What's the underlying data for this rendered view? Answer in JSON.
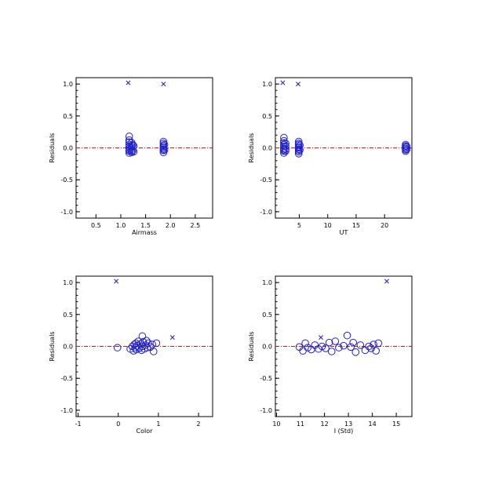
{
  "colors": {
    "marker": "#2020c8",
    "zero_line": "#e01010",
    "axis": "#000000"
  },
  "chart_data": [
    {
      "type": "scatter",
      "xlabel": "Airmass",
      "ylabel": "Residuals",
      "xlim": [
        0.1,
        2.85
      ],
      "ylim": [
        -1.1,
        1.1
      ],
      "xticks": [
        0.5,
        1.0,
        1.5,
        2.0,
        2.5
      ],
      "xtick_labels": [
        "0.5",
        "1.0",
        "1.5",
        "2.0",
        "2.5"
      ],
      "yticks": [
        -1.0,
        -0.5,
        0.0,
        0.5,
        1.0
      ],
      "ytick_labels": [
        "-1.0",
        "-0.5",
        "0.0",
        "0.5",
        "1.0"
      ],
      "zero_line": 0,
      "circles": [
        [
          1.17,
          0.18
        ],
        [
          1.17,
          0.12
        ],
        [
          1.17,
          0.09
        ],
        [
          1.17,
          0.05
        ],
        [
          1.17,
          0.02
        ],
        [
          1.17,
          -0.01
        ],
        [
          1.17,
          -0.03
        ],
        [
          1.17,
          -0.05
        ],
        [
          1.17,
          -0.08
        ],
        [
          1.22,
          0.08
        ],
        [
          1.22,
          0.04
        ],
        [
          1.22,
          0.01
        ],
        [
          1.22,
          -0.02
        ],
        [
          1.22,
          -0.05
        ],
        [
          1.22,
          -0.07
        ],
        [
          1.24,
          0.05
        ],
        [
          1.24,
          -0.04
        ],
        [
          1.26,
          0.03
        ],
        [
          1.26,
          -0.06
        ],
        [
          1.86,
          0.1
        ],
        [
          1.86,
          0.07
        ],
        [
          1.86,
          0.04
        ],
        [
          1.86,
          0.02
        ],
        [
          1.86,
          0.0
        ],
        [
          1.86,
          -0.02
        ],
        [
          1.86,
          -0.04
        ],
        [
          1.86,
          -0.07
        ],
        [
          1.88,
          0.05
        ],
        [
          1.88,
          -0.03
        ]
      ],
      "crosses": [
        [
          1.15,
          1.02
        ],
        [
          1.86,
          1.0
        ]
      ]
    },
    {
      "type": "scatter",
      "xlabel": "UT",
      "ylabel": "Residuals",
      "xlim": [
        0.8,
        24.8
      ],
      "ylim": [
        -1.1,
        1.1
      ],
      "xticks": [
        5,
        10,
        15,
        20
      ],
      "xtick_labels": [
        "5",
        "10",
        "15",
        "20"
      ],
      "yticks": [
        -1.0,
        -0.5,
        0.0,
        0.5,
        1.0
      ],
      "ytick_labels": [
        "-1.0",
        "-0.5",
        "0.0",
        "0.5",
        "1.0"
      ],
      "zero_line": 0,
      "circles": [
        [
          2.3,
          0.16
        ],
        [
          2.3,
          0.11
        ],
        [
          2.3,
          0.08
        ],
        [
          2.3,
          0.05
        ],
        [
          2.3,
          0.02
        ],
        [
          2.3,
          -0.01
        ],
        [
          2.3,
          -0.03
        ],
        [
          2.3,
          -0.05
        ],
        [
          2.3,
          -0.08
        ],
        [
          2.6,
          0.07
        ],
        [
          2.6,
          0.03
        ],
        [
          2.6,
          -0.02
        ],
        [
          2.6,
          -0.05
        ],
        [
          4.9,
          0.1
        ],
        [
          4.9,
          0.07
        ],
        [
          4.9,
          0.05
        ],
        [
          4.9,
          0.02
        ],
        [
          4.9,
          0.0
        ],
        [
          4.9,
          -0.02
        ],
        [
          4.9,
          -0.04
        ],
        [
          4.9,
          -0.06
        ],
        [
          4.9,
          -0.09
        ],
        [
          5.1,
          0.04
        ],
        [
          5.1,
          -0.03
        ],
        [
          23.7,
          0.05
        ],
        [
          23.7,
          0.03
        ],
        [
          23.7,
          0.01
        ],
        [
          23.7,
          -0.01
        ],
        [
          23.7,
          -0.03
        ],
        [
          23.7,
          -0.05
        ],
        [
          23.9,
          0.02
        ],
        [
          23.9,
          -0.02
        ]
      ],
      "crosses": [
        [
          2.1,
          1.02
        ],
        [
          4.8,
          1.0
        ]
      ]
    },
    {
      "type": "scatter",
      "xlabel": "Color",
      "ylabel": "Residuals",
      "xlim": [
        -1.05,
        2.35
      ],
      "ylim": [
        -1.1,
        1.1
      ],
      "xticks": [
        -1,
        0,
        1,
        2
      ],
      "xtick_labels": [
        "-1",
        "0",
        "1",
        "2"
      ],
      "yticks": [
        -1.0,
        -0.5,
        0.0,
        0.5,
        1.0
      ],
      "ytick_labels": [
        "-1.0",
        "-0.5",
        "0.0",
        "0.5",
        "1.0"
      ],
      "zero_line": 0,
      "circles": [
        [
          -0.02,
          -0.02
        ],
        [
          0.3,
          -0.04
        ],
        [
          0.35,
          0.0
        ],
        [
          0.38,
          -0.07
        ],
        [
          0.4,
          0.03
        ],
        [
          0.42,
          -0.02
        ],
        [
          0.44,
          0.05
        ],
        [
          0.45,
          -0.05
        ],
        [
          0.47,
          0.01
        ],
        [
          0.5,
          0.08
        ],
        [
          0.52,
          -0.03
        ],
        [
          0.55,
          0.04
        ],
        [
          0.58,
          -0.06
        ],
        [
          0.6,
          0.16
        ],
        [
          0.6,
          0.0
        ],
        [
          0.62,
          0.07
        ],
        [
          0.65,
          -0.04
        ],
        [
          0.68,
          0.02
        ],
        [
          0.7,
          0.09
        ],
        [
          0.72,
          -0.02
        ],
        [
          0.75,
          0.05
        ],
        [
          0.8,
          -0.01
        ],
        [
          0.85,
          0.03
        ],
        [
          0.88,
          -0.08
        ],
        [
          0.95,
          0.05
        ]
      ],
      "crosses": [
        [
          -0.05,
          1.02
        ],
        [
          1.35,
          0.14
        ]
      ]
    },
    {
      "type": "scatter",
      "xlabel": "I (Std)",
      "ylabel": "Residuals",
      "xlim": [
        9.95,
        15.65
      ],
      "ylim": [
        -1.1,
        1.1
      ],
      "xticks": [
        10,
        11,
        12,
        13,
        14,
        15
      ],
      "xtick_labels": [
        "10",
        "11",
        "12",
        "13",
        "14",
        "15"
      ],
      "yticks": [
        -1.0,
        -0.5,
        0.0,
        0.5,
        1.0
      ],
      "ytick_labels": [
        "-1.0",
        "-0.5",
        "0.0",
        "0.5",
        "1.0"
      ],
      "zero_line": 0,
      "circles": [
        [
          10.95,
          -0.01
        ],
        [
          11.1,
          -0.07
        ],
        [
          11.2,
          0.05
        ],
        [
          11.3,
          -0.02
        ],
        [
          11.45,
          -0.05
        ],
        [
          11.6,
          0.02
        ],
        [
          11.75,
          -0.04
        ],
        [
          11.9,
          0.0
        ],
        [
          12.05,
          -0.03
        ],
        [
          12.2,
          0.06
        ],
        [
          12.3,
          -0.08
        ],
        [
          12.45,
          0.08
        ],
        [
          12.6,
          -0.02
        ],
        [
          12.8,
          0.01
        ],
        [
          12.95,
          0.17
        ],
        [
          13.1,
          -0.01
        ],
        [
          13.2,
          0.06
        ],
        [
          13.3,
          -0.09
        ],
        [
          13.5,
          0.02
        ],
        [
          13.7,
          -0.06
        ],
        [
          13.85,
          0.0
        ],
        [
          13.95,
          -0.03
        ],
        [
          14.05,
          0.03
        ],
        [
          14.15,
          -0.07
        ],
        [
          14.25,
          0.05
        ]
      ],
      "crosses": [
        [
          11.85,
          0.14
        ],
        [
          14.6,
          1.02
        ]
      ]
    }
  ]
}
